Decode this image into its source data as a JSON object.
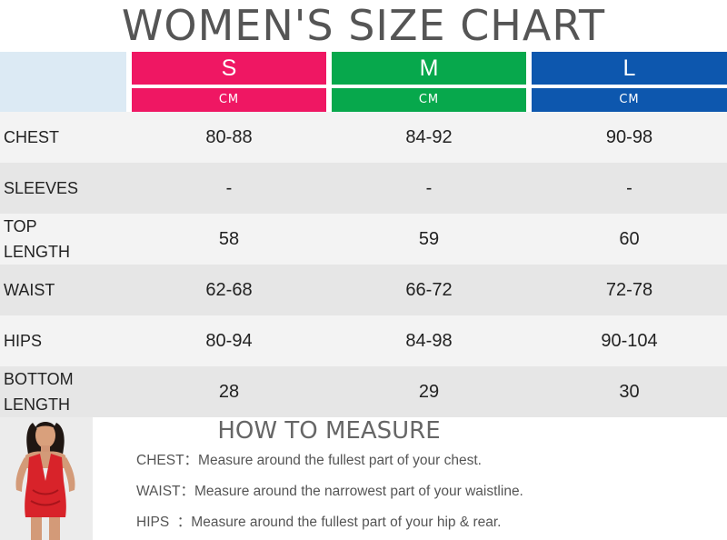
{
  "title": "WOMEN'S SIZE CHART",
  "sizes": [
    {
      "label": "S",
      "unit": "CM",
      "color": "#ef1763"
    },
    {
      "label": "M",
      "unit": "CM",
      "color": "#07a84c"
    },
    {
      "label": "L",
      "unit": "CM",
      "color": "#0d57ae"
    }
  ],
  "header_corner_color": "#dceaf4",
  "rows": [
    {
      "label_line1": "CHEST",
      "label_line2": "",
      "s": "80-88",
      "m": "84-92",
      "l": "90-98"
    },
    {
      "label_line1": "SLEEVES",
      "label_line2": "",
      "s": "-",
      "m": "-",
      "l": "-"
    },
    {
      "label_line1": "TOP",
      "label_line2": "LENGTH",
      "s": "58",
      "m": "59",
      "l": "60"
    },
    {
      "label_line1": "WAIST",
      "label_line2": "",
      "s": "62-68",
      "m": "66-72",
      "l": "72-78"
    },
    {
      "label_line1": "HIPS",
      "label_line2": "",
      "s": "80-94",
      "m": "84-98",
      "l": "90-104"
    },
    {
      "label_line1": "BOTTOM",
      "label_line2": "LENGTH",
      "s": "28",
      "m": "29",
      "l": "30"
    }
  ],
  "how_to_measure": {
    "title": "HOW TO MEASURE",
    "tips": [
      {
        "key": "CHEST：",
        "text": "Measure around the fullest part of your chest."
      },
      {
        "key": "WAIST：",
        "text": "Measure around the narrowest part of your waistline."
      },
      {
        "key": "HIPS  ：",
        "text": "Measure around the fullest part of your hip & rear."
      }
    ]
  }
}
